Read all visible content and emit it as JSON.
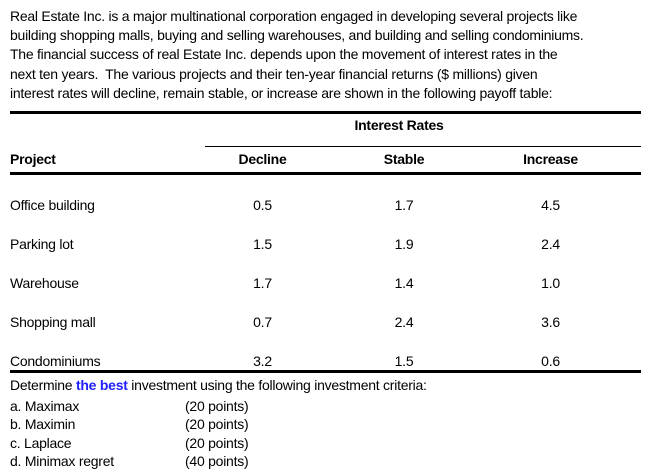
{
  "page": {
    "background": "#ffffff",
    "text_color": "#000000",
    "accent_color": "#1f1fff"
  },
  "intro": {
    "lines": [
      "Real Estate Inc. is a major multinational corporation engaged in developing several projects like",
      "building shopping malls, buying and selling warehouses, and building and selling condominiums.",
      "The financial success of real Estate Inc. depends upon the movement of interest rates in the",
      "next ten years.  The various projects and their ten-year financial returns ($ millions) given",
      "interest rates will decline, remain stable, or increase are shown in the following payoff table:"
    ]
  },
  "payoff_table": {
    "group_header": "Interest Rates",
    "columns": [
      "Project",
      "Decline",
      "Stable",
      "Increase"
    ],
    "rows": [
      {
        "project": "Office building",
        "decline": "0.5",
        "stable": "1.7",
        "increase": "4.5"
      },
      {
        "project": "Parking lot",
        "decline": "1.5",
        "stable": "1.9",
        "increase": "2.4"
      },
      {
        "project": "Warehouse",
        "decline": "1.7",
        "stable": "1.4",
        "increase": "1.0"
      },
      {
        "project": "Shopping mall",
        "decline": "0.7",
        "stable": "2.4",
        "increase": "3.6"
      },
      {
        "project": "Condominiums",
        "decline": "3.2",
        "stable": "1.5",
        "increase": "0.6"
      }
    ]
  },
  "question": {
    "prefix": "Determine ",
    "highlight": "the best",
    "suffix": " investment using the following investment criteria:"
  },
  "criteria": [
    {
      "label": "a. Maximax",
      "points": "(20 points)"
    },
    {
      "label": "b. Maximin",
      "points": "(20 points)"
    },
    {
      "label": "c. Laplace",
      "points": "(20 points)"
    },
    {
      "label": "d. Minimax regret",
      "points": "(40 points)"
    }
  ]
}
